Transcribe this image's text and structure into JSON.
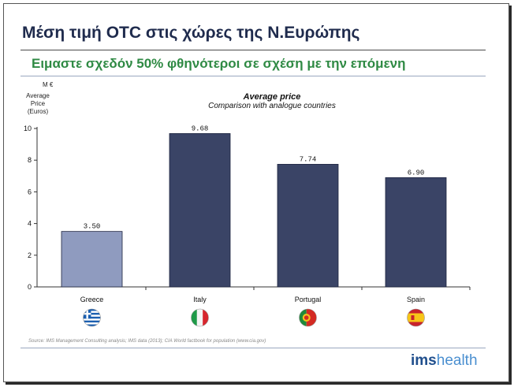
{
  "slide": {
    "title": "Μέση τιμή OTC στις χώρες της Ν.Ευρώπης",
    "subtitle": "Ειμαστε σχεδόν 50% φθηνότεροι σε σχέση με την επόμενη",
    "source": "Source: IMS Management Consulting analysis; IMS data (2013); CIA World factbook for population (www.cia.gov)",
    "logo_ims": "ims",
    "logo_health": "health"
  },
  "chart_data": {
    "type": "bar",
    "title": "Average price",
    "subtitle": "Comparison with analogue countries",
    "unit": "M €",
    "ylabel": "Average Price (Euros)",
    "categories": [
      "Greece",
      "Italy",
      "Portugal",
      "Spain"
    ],
    "values": [
      3.5,
      9.68,
      7.74,
      6.9
    ],
    "value_labels": [
      "3.50",
      "9.68",
      "7.74",
      "6.90"
    ],
    "ylim": [
      0,
      10
    ],
    "yticks": [
      "0",
      "2",
      "4",
      "6",
      "8",
      "10"
    ],
    "grid": false,
    "bar_colors": [
      "#8f9bbf",
      "#3a4466",
      "#3a4466",
      "#3a4466"
    ],
    "flags": [
      "greece-flag-icon",
      "italy-flag-icon",
      "portugal-flag-icon",
      "spain-flag-icon"
    ]
  }
}
